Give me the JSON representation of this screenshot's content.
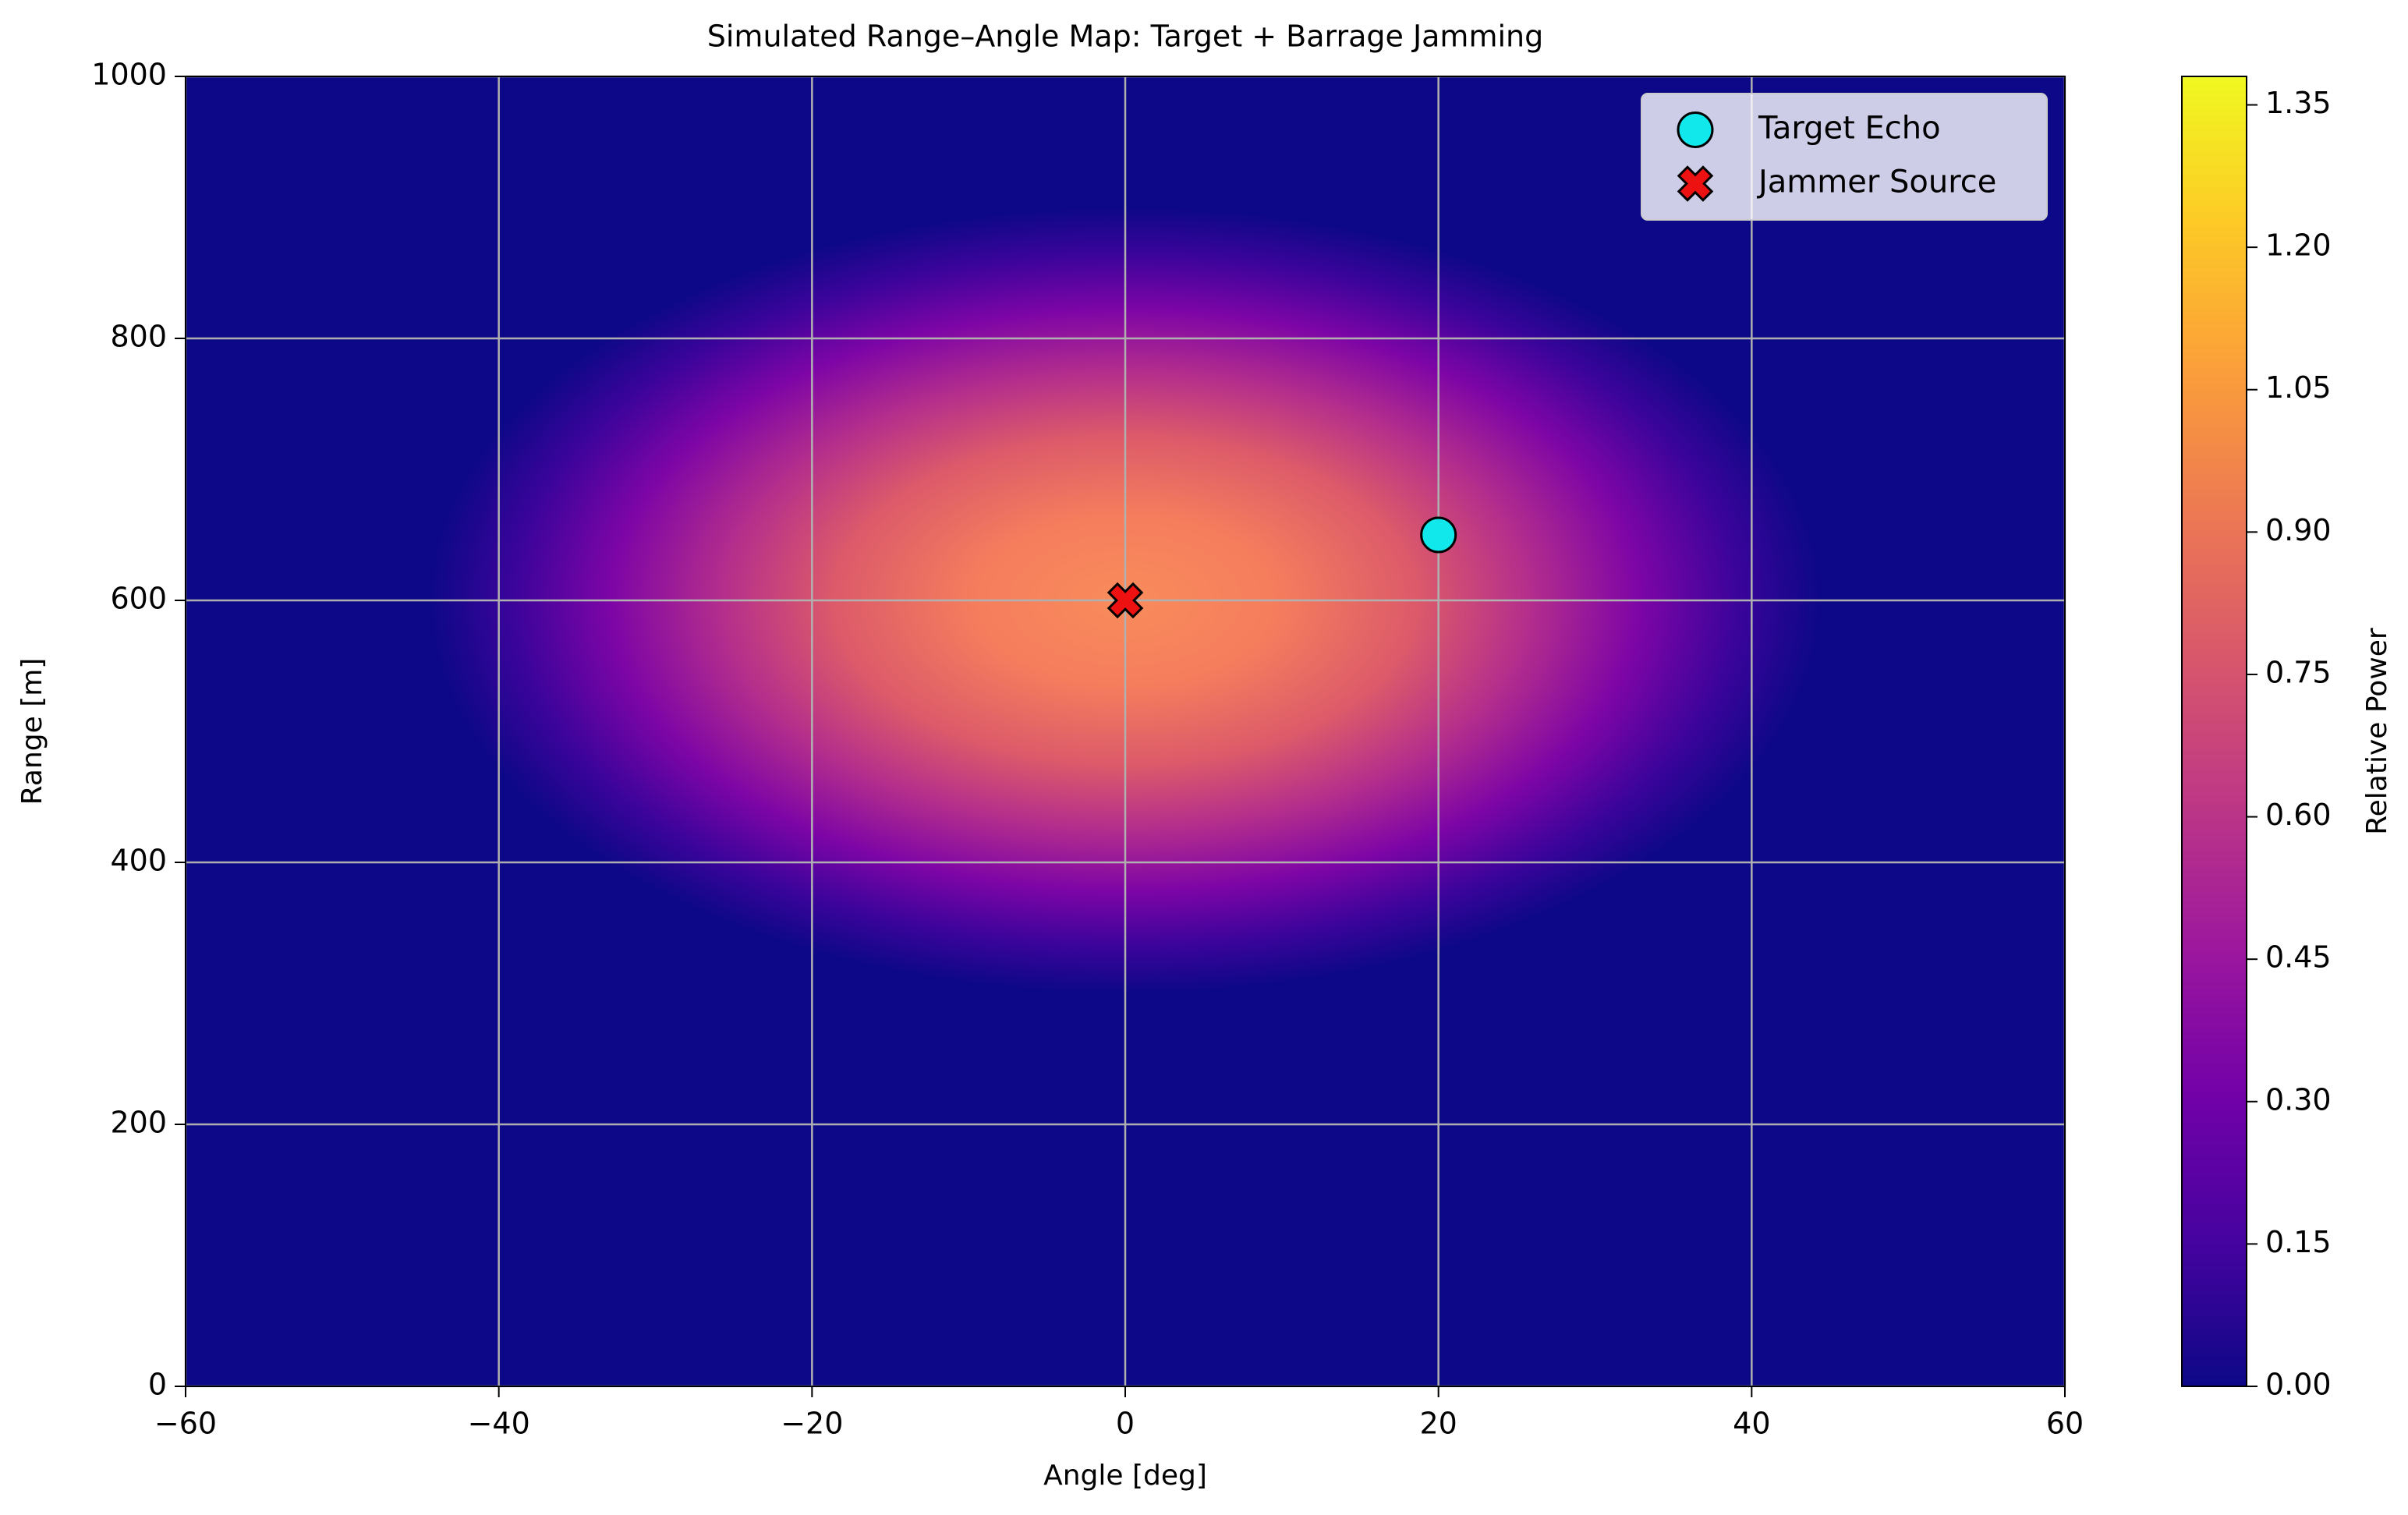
{
  "chart_data": {
    "type": "heatmap",
    "title": "Simulated Range–Angle Map: Target + Barrage Jamming",
    "x_label": "Angle [deg]",
    "y_label": "Range [m]",
    "xlim": [
      -60,
      60
    ],
    "ylim": [
      0,
      1000
    ],
    "xticks": [
      {
        "value": -60,
        "label": "−60"
      },
      {
        "value": -40,
        "label": "−40"
      },
      {
        "value": -20,
        "label": "−20"
      },
      0,
      20,
      40,
      60
    ],
    "yticks": [
      0,
      200,
      400,
      600,
      800,
      1000
    ],
    "grid": true,
    "legend_position": "upper right",
    "series": [
      {
        "name": "Target Echo",
        "color": "#10e8ec",
        "marker": "circle",
        "x": [
          20
        ],
        "values": [
          650
        ]
      },
      {
        "name": "Jammer Source",
        "color": "#ee1111",
        "marker": "x",
        "x": [
          0
        ],
        "values": [
          600
        ]
      }
    ],
    "colorbar": {
      "label": "Relative Power",
      "lim": [
        0,
        1.38
      ],
      "ticks": [
        {
          "value": 0,
          "label": "0.00"
        },
        {
          "value": 0.15,
          "label": "0.15"
        },
        {
          "value": 0.3,
          "label": "0.30"
        },
        {
          "value": 0.45,
          "label": "0.45"
        },
        {
          "value": 0.6,
          "label": "0.60"
        },
        {
          "value": 0.75,
          "label": "0.75"
        },
        {
          "value": 0.9,
          "label": "0.90"
        },
        {
          "value": 1.05,
          "label": "1.05"
        },
        {
          "value": 1.2,
          "label": "1.20"
        },
        {
          "value": 1.35,
          "label": "1.35"
        }
      ],
      "colors": [
        "#0d0887",
        "#46039f",
        "#7201a8",
        "#9c179e",
        "#bd3786",
        "#d8576b",
        "#ed7953",
        "#fb9f3a",
        "#fdca26",
        "#f0f921"
      ]
    }
  }
}
